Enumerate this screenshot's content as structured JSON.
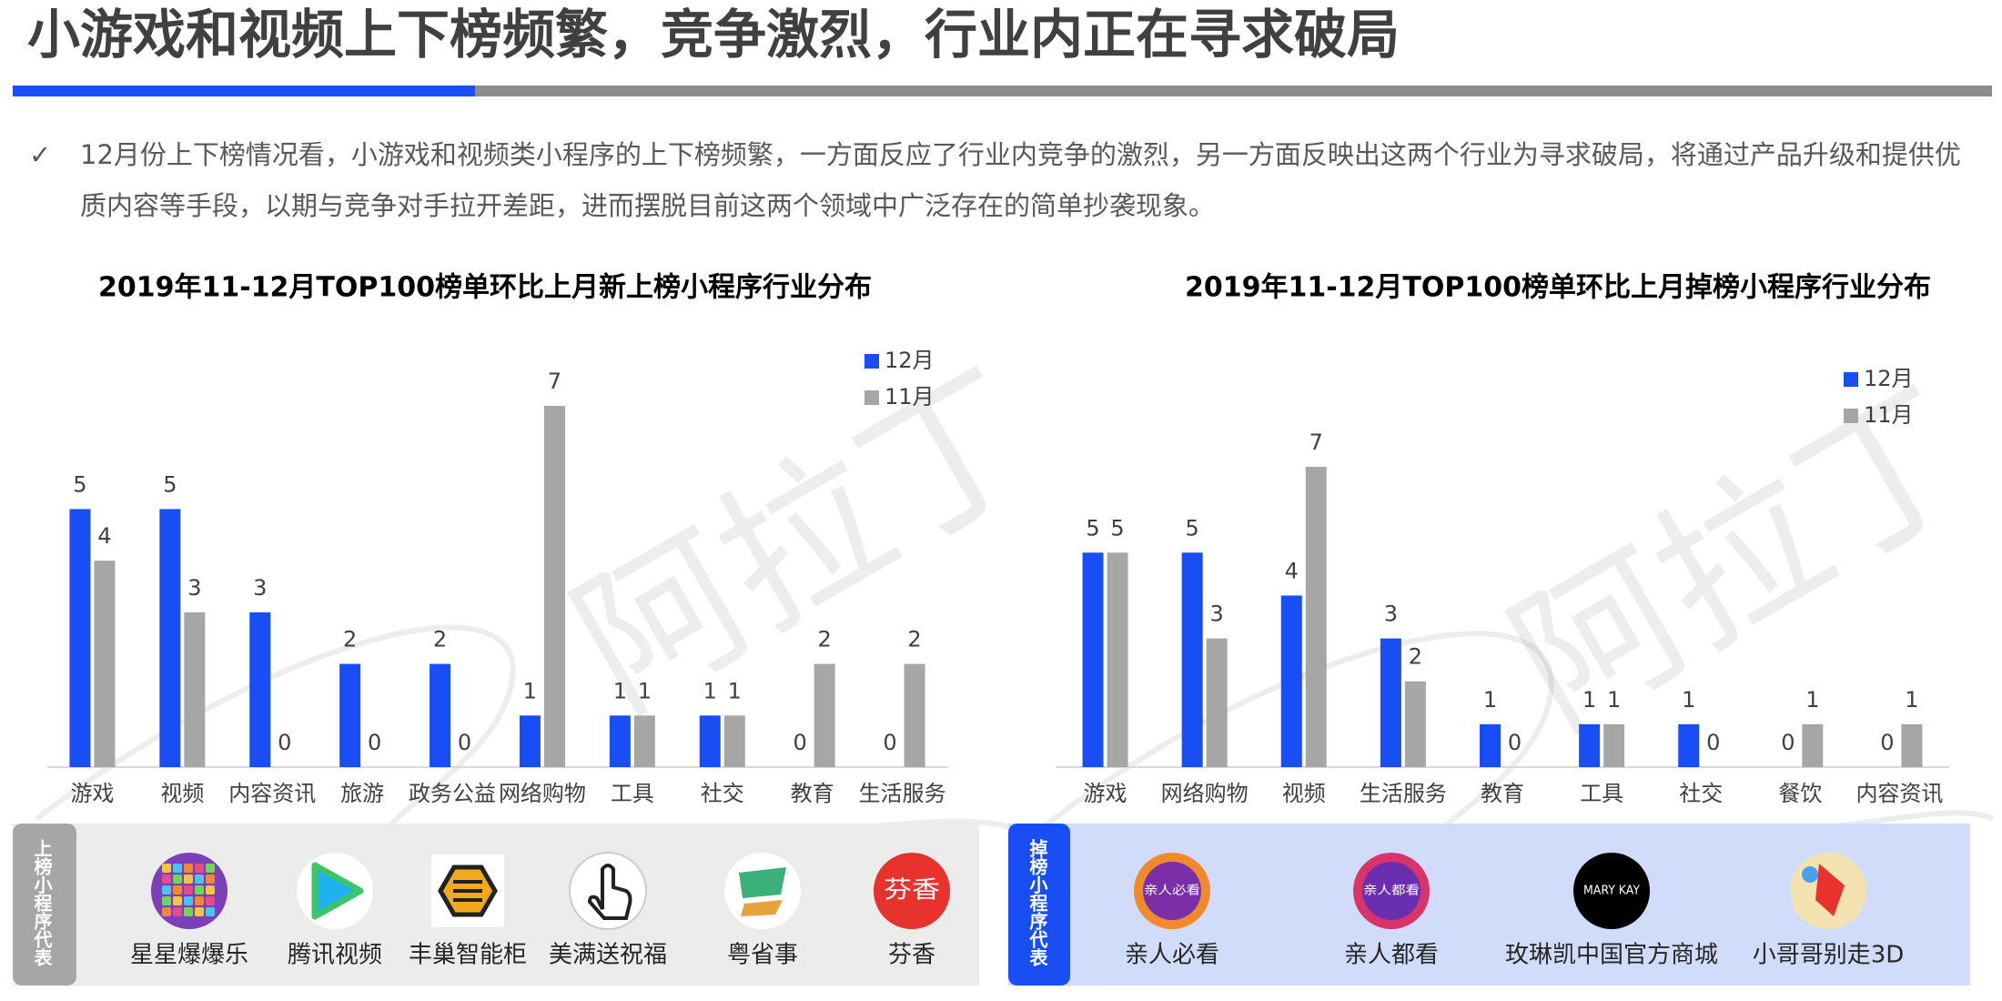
{
  "header": {
    "title": "小游戏和视频上下榜频繁，竞争激烈，行业内正在寻求破局"
  },
  "bullet": "12月份上下榜情况看，小游戏和视频类小程序的上下榜频繁，一方面反应了行业内竞争的激烈，另一方面反映出这两个行业为寻求破局，将通过产品升级和提供优质内容等手段，以期与竞争对手拉开差距，进而摆脱目前这两个领域中广泛存在的简单抄袭现象。",
  "watermark": "阿拉丁",
  "chart_data": [
    {
      "type": "bar",
      "title": "2019年11-12月TOP100榜单环比上月新上榜小程序行业分布",
      "categories": [
        "游戏",
        "视频",
        "内容资讯",
        "旅游",
        "政务公益",
        "网络购物",
        "工具",
        "社交",
        "教育",
        "生活服务"
      ],
      "series": [
        {
          "name": "12月",
          "color": "#1a4ef5",
          "values": [
            5,
            5,
            3,
            2,
            2,
            1,
            1,
            1,
            0,
            0
          ]
        },
        {
          "name": "11月",
          "color": "#a6a6a6",
          "values": [
            4,
            3,
            0,
            0,
            0,
            7,
            1,
            1,
            2,
            2
          ]
        }
      ],
      "ylim": [
        0,
        7
      ]
    },
    {
      "type": "bar",
      "title": "2019年11-12月TOP100榜单环比上月掉榜小程序行业分布",
      "categories": [
        "游戏",
        "网络购物",
        "视频",
        "生活服务",
        "教育",
        "工具",
        "社交",
        "餐饮",
        "内容资讯"
      ],
      "series": [
        {
          "name": "12月",
          "color": "#1a4ef5",
          "values": [
            5,
            5,
            4,
            3,
            1,
            1,
            1,
            0,
            0
          ]
        },
        {
          "name": "11月",
          "color": "#a6a6a6",
          "values": [
            5,
            3,
            7,
            2,
            0,
            1,
            0,
            1,
            1
          ]
        }
      ],
      "ylim": [
        0,
        7
      ]
    }
  ],
  "apps": {
    "up": {
      "label": "上榜小程序代表",
      "items": [
        {
          "name": "星星爆爆乐"
        },
        {
          "name": "腾讯视频"
        },
        {
          "name": "丰巢智能柜"
        },
        {
          "name": "美满送祝福"
        },
        {
          "name": "粤省事"
        },
        {
          "name": "芬香",
          "icon_text": "芬香"
        }
      ]
    },
    "down": {
      "label": "掉榜小程序代表",
      "items": [
        {
          "name": "亲人必看",
          "icon_text": "亲人必看"
        },
        {
          "name": "亲人都看",
          "icon_text": "亲人都看"
        },
        {
          "name": "玫琳凯中国官方商城",
          "icon_text": "MARY KAY"
        },
        {
          "name": "小哥哥别走3D"
        }
      ]
    }
  }
}
